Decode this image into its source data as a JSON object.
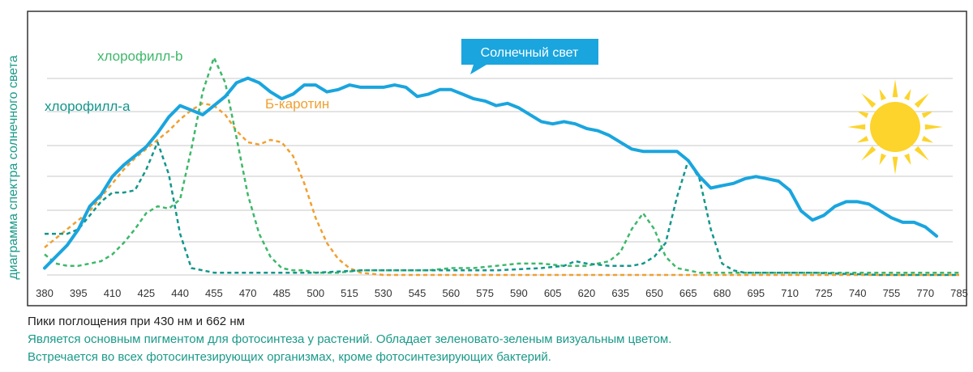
{
  "chart_data": {
    "type": "line",
    "ylabel": "диаграмма спектра солнечного света",
    "x_ticks": [
      380,
      395,
      410,
      425,
      440,
      455,
      470,
      485,
      500,
      515,
      530,
      545,
      560,
      575,
      590,
      605,
      620,
      635,
      650,
      665,
      680,
      695,
      710,
      725,
      740,
      755,
      770,
      785
    ],
    "xlim": [
      380,
      785
    ],
    "ylim": [
      0,
      1
    ],
    "grid": true,
    "series": [
      {
        "name": "Солнечный свет",
        "color": "#1aa5de",
        "style": "solid",
        "x": [
          380,
          385,
          390,
          395,
          400,
          405,
          410,
          415,
          420,
          425,
          430,
          435,
          440,
          445,
          450,
          455,
          460,
          465,
          470,
          475,
          480,
          485,
          490,
          495,
          500,
          505,
          510,
          515,
          520,
          525,
          530,
          535,
          540,
          545,
          550,
          555,
          560,
          565,
          570,
          575,
          580,
          585,
          590,
          595,
          600,
          605,
          610,
          615,
          620,
          625,
          630,
          635,
          640,
          645,
          650,
          655,
          660,
          665,
          670,
          675,
          680,
          685,
          690,
          695,
          700,
          705,
          710,
          715,
          720,
          725,
          730,
          735,
          740,
          745,
          750,
          755,
          760,
          765,
          770,
          775
        ],
        "y": [
          0.03,
          0.08,
          0.13,
          0.2,
          0.3,
          0.35,
          0.43,
          0.48,
          0.52,
          0.56,
          0.62,
          0.69,
          0.74,
          0.72,
          0.7,
          0.74,
          0.78,
          0.84,
          0.86,
          0.84,
          0.8,
          0.77,
          0.79,
          0.83,
          0.83,
          0.8,
          0.81,
          0.83,
          0.82,
          0.82,
          0.82,
          0.83,
          0.82,
          0.78,
          0.79,
          0.81,
          0.81,
          0.79,
          0.77,
          0.76,
          0.74,
          0.75,
          0.73,
          0.7,
          0.67,
          0.66,
          0.67,
          0.66,
          0.64,
          0.63,
          0.61,
          0.58,
          0.55,
          0.54,
          0.54,
          0.54,
          0.54,
          0.5,
          0.43,
          0.38,
          0.39,
          0.4,
          0.42,
          0.43,
          0.42,
          0.41,
          0.37,
          0.28,
          0.24,
          0.26,
          0.3,
          0.32,
          0.32,
          0.31,
          0.28,
          0.25,
          0.23,
          0.23,
          0.21,
          0.17
        ]
      },
      {
        "name": "хлорофилл-b",
        "color": "#3db86a",
        "style": "dashed",
        "x": [
          380,
          385,
          390,
          395,
          400,
          405,
          410,
          415,
          420,
          425,
          430,
          435,
          440,
          445,
          450,
          455,
          460,
          465,
          470,
          475,
          480,
          485,
          490,
          495,
          500,
          510,
          520,
          530,
          540,
          550,
          560,
          570,
          580,
          590,
          600,
          610,
          620,
          630,
          635,
          640,
          645,
          650,
          655,
          660,
          665,
          670,
          675,
          680,
          690,
          700,
          720,
          750,
          785
        ],
        "y": [
          0.09,
          0.05,
          0.04,
          0.04,
          0.05,
          0.06,
          0.09,
          0.14,
          0.2,
          0.27,
          0.3,
          0.29,
          0.33,
          0.55,
          0.8,
          0.95,
          0.84,
          0.6,
          0.35,
          0.18,
          0.08,
          0.03,
          0.02,
          0.02,
          0.01,
          0.01,
          0.02,
          0.02,
          0.02,
          0.02,
          0.03,
          0.03,
          0.04,
          0.05,
          0.05,
          0.04,
          0.04,
          0.06,
          0.1,
          0.2,
          0.27,
          0.2,
          0.08,
          0.03,
          0.02,
          0.01,
          0.01,
          0.01,
          0.01,
          0.01,
          0.01,
          0.01,
          0.01
        ]
      },
      {
        "name": "хлорофилл-a",
        "color": "#12968c",
        "style": "dashed",
        "x": [
          380,
          385,
          390,
          395,
          400,
          405,
          410,
          415,
          420,
          425,
          430,
          435,
          440,
          445,
          450,
          455,
          460,
          470,
          480,
          500,
          520,
          540,
          560,
          580,
          600,
          610,
          615,
          620,
          630,
          640,
          645,
          650,
          655,
          660,
          665,
          670,
          675,
          680,
          685,
          690,
          700,
          720,
          750,
          785
        ],
        "y": [
          0.18,
          0.18,
          0.18,
          0.2,
          0.26,
          0.32,
          0.36,
          0.36,
          0.37,
          0.46,
          0.58,
          0.44,
          0.18,
          0.03,
          0.02,
          0.01,
          0.01,
          0.01,
          0.01,
          0.01,
          0.02,
          0.02,
          0.02,
          0.02,
          0.03,
          0.04,
          0.06,
          0.05,
          0.04,
          0.04,
          0.05,
          0.08,
          0.14,
          0.34,
          0.5,
          0.42,
          0.2,
          0.05,
          0.02,
          0.01,
          0.01,
          0.01,
          0.0,
          0.0
        ]
      },
      {
        "name": "Б-каротин",
        "color": "#f0a030",
        "style": "dashed",
        "x": [
          380,
          385,
          390,
          395,
          400,
          405,
          410,
          415,
          420,
          425,
          430,
          435,
          440,
          445,
          450,
          455,
          460,
          465,
          470,
          475,
          480,
          485,
          490,
          495,
          500,
          505,
          510,
          515,
          520,
          530,
          550,
          600,
          650,
          700,
          785
        ],
        "y": [
          0.12,
          0.16,
          0.2,
          0.24,
          0.28,
          0.34,
          0.4,
          0.46,
          0.51,
          0.55,
          0.59,
          0.63,
          0.68,
          0.72,
          0.75,
          0.74,
          0.7,
          0.63,
          0.58,
          0.57,
          0.59,
          0.58,
          0.52,
          0.4,
          0.25,
          0.14,
          0.07,
          0.03,
          0.01,
          0.0,
          0.0,
          0.0,
          0.0,
          0.0,
          0.0
        ]
      }
    ]
  },
  "colors": {
    "sun": "#fcd42b",
    "callout_bg": "#1aa5de",
    "frame": "#333333",
    "grid": "#c8c8c8"
  },
  "caption": {
    "line1": "Пики поглощения при 430 нм и 662 нм",
    "line2": "Является основным пигментом для фотосинтеза у растений. Обладает зеленовато-зеленым визуальным цветом.",
    "line3": "Встречается во всех фотосинтезирующих организмах, кроме фотосинтезирующих бактерий."
  }
}
